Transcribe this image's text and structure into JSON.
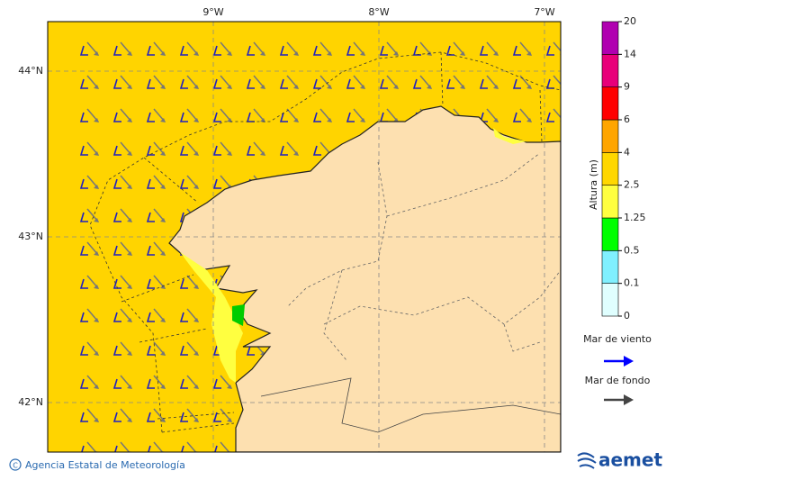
{
  "map": {
    "lon_labels": [
      "9°W",
      "8°W",
      "7°W"
    ],
    "lat_labels": [
      "44°N",
      "43°N",
      "42°N"
    ],
    "colorbar": {
      "label": "Altura (m)",
      "levels": [
        0,
        0.1,
        0.5,
        1.25,
        2.5,
        4,
        6,
        9,
        14,
        20
      ],
      "colors": [
        "#e0ffff",
        "#80f0ff",
        "#00ff00",
        "#ffff40",
        "#ffd700",
        "#ffa500",
        "#ff0000",
        "#e8007a",
        "#b000b0"
      ]
    },
    "legend": [
      {
        "name": "Mar de viento",
        "color": "#0000ff"
      },
      {
        "name": "Mar de fondo",
        "color": "#444444"
      }
    ],
    "footer": "Agencia Estatal de Meteorología",
    "logo": "aemet"
  }
}
